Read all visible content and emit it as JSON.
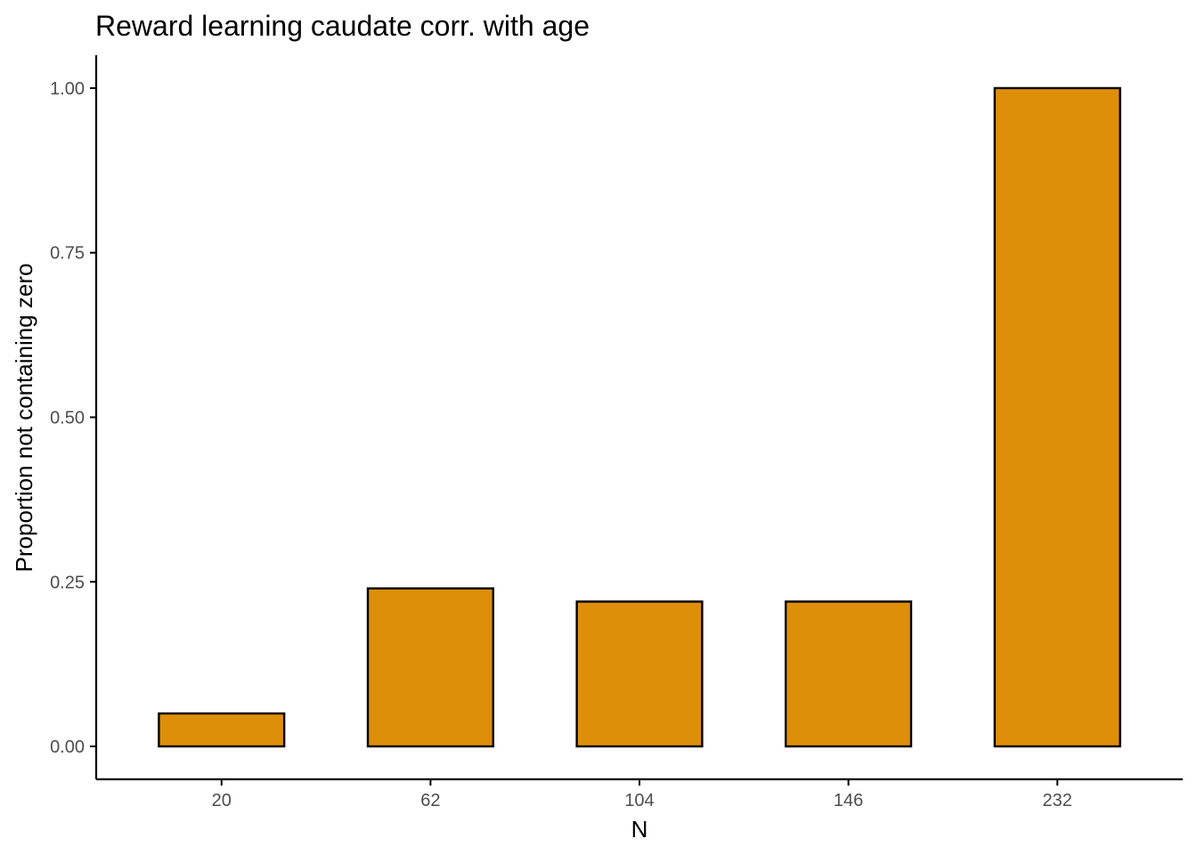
{
  "chart_data": {
    "type": "bar",
    "title": "Reward learning caudate corr. with age",
    "xlabel": "N",
    "ylabel": "Proportion not containing zero",
    "categories": [
      "20",
      "62",
      "104",
      "146",
      "232"
    ],
    "values": [
      0.05,
      0.24,
      0.22,
      0.22,
      1.0
    ],
    "ylim": [
      -0.05,
      1.05
    ],
    "yticks": [
      0.0,
      0.25,
      0.5,
      0.75,
      1.0
    ],
    "ytick_labels": [
      "0.00",
      "0.25",
      "0.50",
      "0.75",
      "1.00"
    ],
    "grid": false,
    "legend": "none",
    "colors": {
      "bar_fill": "#DE8F09",
      "bar_stroke": "#000000",
      "axis": "#000000",
      "tick_label": "#4D4D4D"
    }
  }
}
